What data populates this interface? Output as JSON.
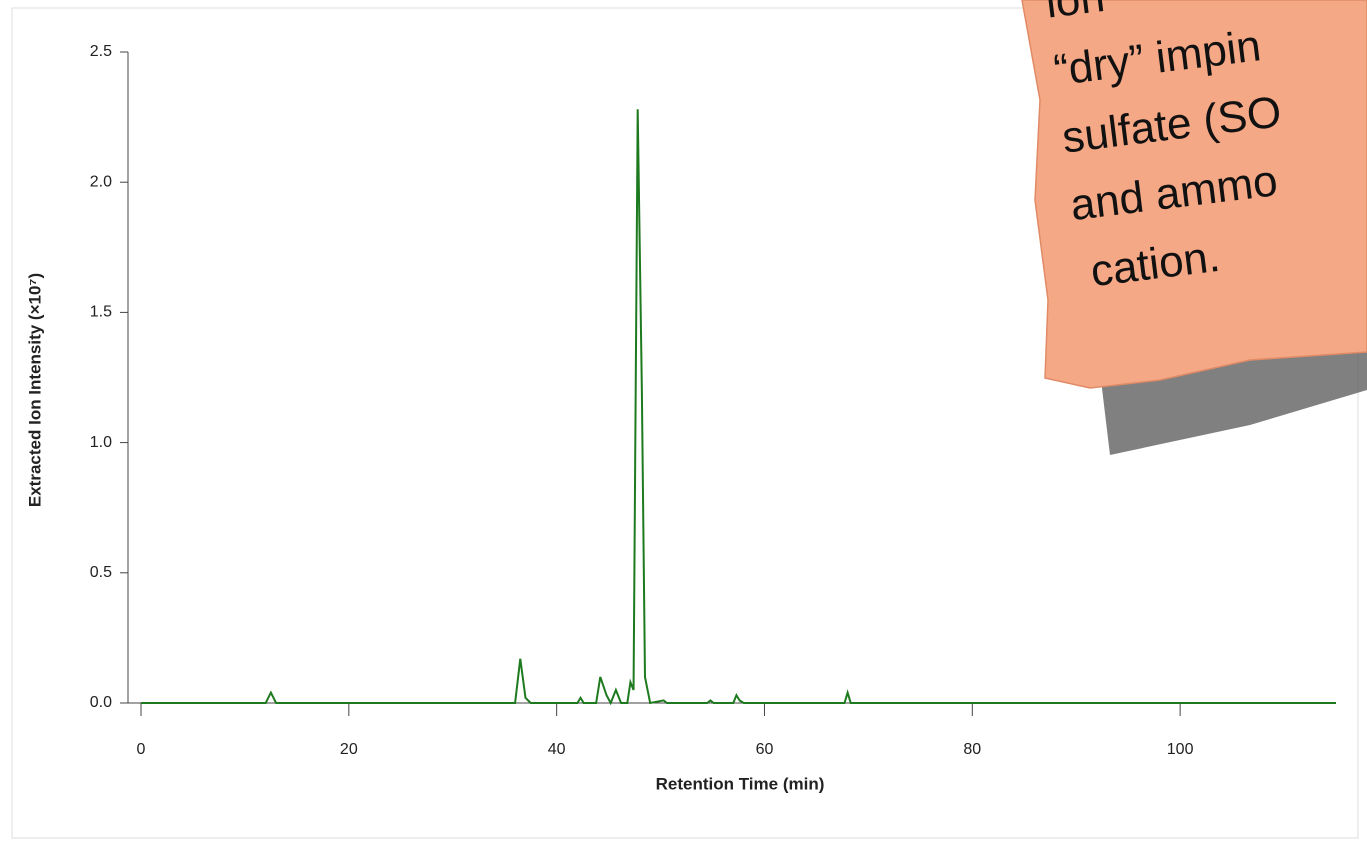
{
  "chart_data": {
    "type": "line",
    "xlabel": "Retention Time (min)",
    "ylabel": "Extracted Ion Intensity (×10⁷)",
    "x": [
      0,
      12,
      12.5,
      13,
      36,
      36.5,
      37,
      37.5,
      42,
      42.3,
      42.6,
      43.8,
      44.2,
      44.8,
      45.2,
      45.7,
      46.2,
      46.8,
      47.1,
      47.4,
      47.8,
      48.2,
      48.5,
      49,
      50.3,
      50.6,
      54.5,
      54.8,
      55.1,
      57,
      57.3,
      57.6,
      58,
      67.7,
      68,
      68.3,
      115
    ],
    "series": [
      {
        "color": "#1e7a1e",
        "values": [
          0,
          0,
          0.04,
          0,
          0,
          0.17,
          0.02,
          0,
          0,
          0.02,
          0,
          0,
          0.1,
          0.03,
          0,
          0.05,
          0,
          0,
          0.08,
          0.05,
          2.28,
          1.2,
          0.1,
          0,
          0.01,
          0,
          0,
          0.01,
          0,
          0,
          0.03,
          0.01,
          0,
          0,
          0.04,
          0,
          0
        ]
      }
    ],
    "xlim": [
      0,
      115
    ],
    "xticks": [
      0,
      20,
      40,
      60,
      80,
      100
    ],
    "ylim": [
      0,
      2.5
    ],
    "yticks": [
      {
        "value": 0,
        "label": "0.0"
      },
      0.5,
      {
        "value": 1,
        "label": "1.0"
      },
      1.5,
      {
        "value": 2,
        "label": "2.0"
      },
      2.5
    ]
  },
  "note": {
    "lines": [
      "ion",
      "“dry” impin",
      "sulfate (SO",
      "and ammo",
      "cation."
    ]
  }
}
